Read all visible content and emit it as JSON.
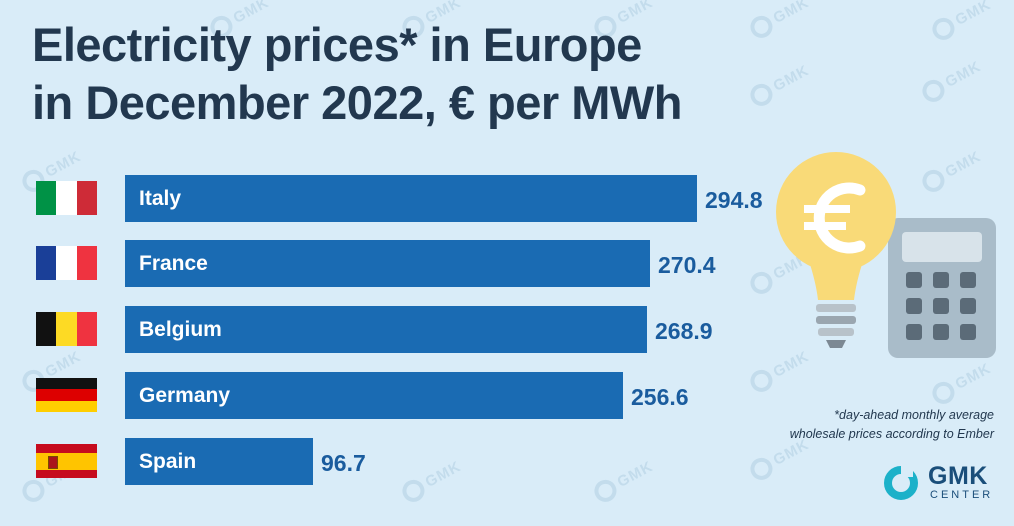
{
  "title_line1": "Electricity prices* in Europe",
  "title_line2": "in December 2022, € per MWh",
  "footnote_line1": "*day-ahead monthly average",
  "footnote_line2": "wholesale prices according to Ember",
  "brand": {
    "name": "GMK",
    "sub": "CENTER"
  },
  "watermark": "GMK",
  "colors": {
    "background": "#d9ecf8",
    "bar": "#1a6bb3",
    "value": "#1a5c9e",
    "title": "#22384f",
    "bulb": "#f9da78"
  },
  "icons": [
    "euro-lightbulb-icon",
    "calculator-icon",
    "gmk-logo-icon"
  ],
  "chart_data": {
    "type": "bar",
    "orientation": "horizontal",
    "categories": [
      "Italy",
      "France",
      "Belgium",
      "Germany",
      "Spain"
    ],
    "values": [
      294.8,
      270.4,
      268.9,
      256.6,
      96.7
    ],
    "value_labels": [
      "294.8",
      "270.4",
      "268.9",
      "256.6",
      "96.7"
    ],
    "flags": [
      "italy-flag-icon",
      "france-flag-icon",
      "belgium-flag-icon",
      "germany-flag-icon",
      "spain-flag-icon"
    ],
    "title": "Electricity prices* in Europe in December 2022, € per MWh",
    "xlabel": "",
    "ylabel": "",
    "grid": false,
    "legend": "none"
  }
}
